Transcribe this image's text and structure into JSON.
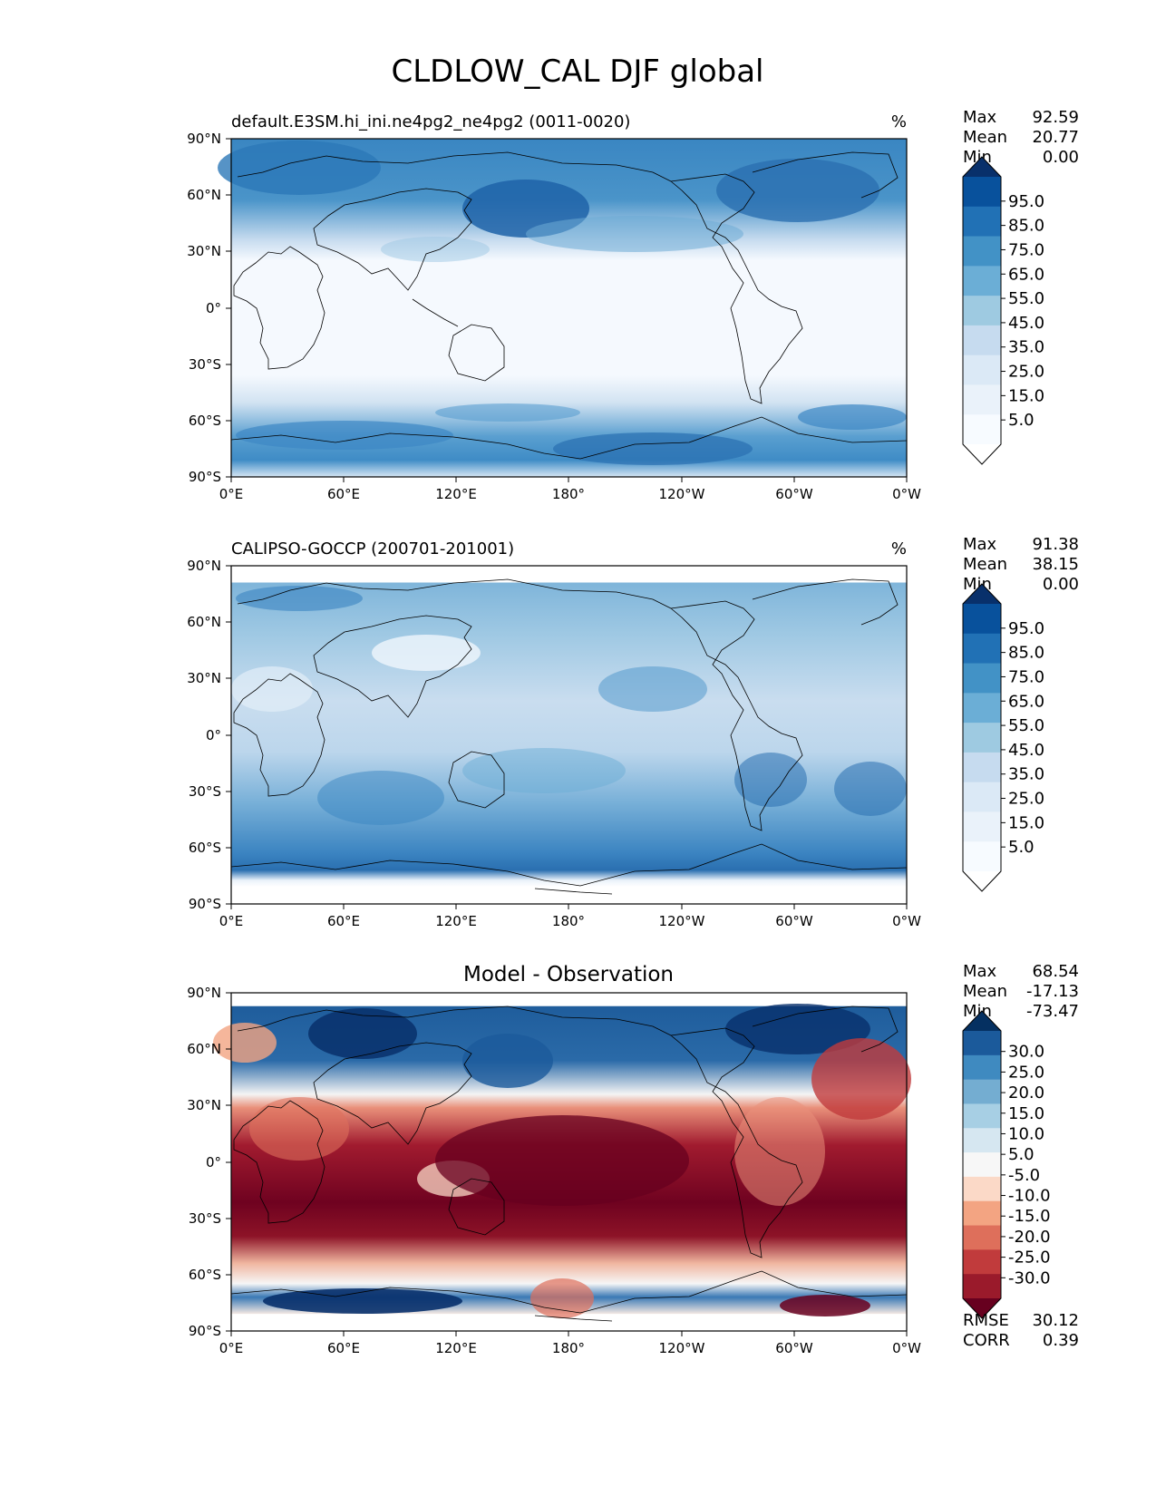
{
  "figure": {
    "title": "CLDLOW_CAL DJF global"
  },
  "axis_labels": {
    "lat": [
      "90°N",
      "60°N",
      "30°N",
      "0°",
      "30°S",
      "60°S",
      "90°S"
    ],
    "lon": [
      "0°E",
      "60°E",
      "120°E",
      "180°",
      "120°W",
      "60°W",
      "0°W"
    ]
  },
  "panels": [
    {
      "id": "model",
      "title_left": "default.E3SM.hi_ini.ne4pg2_ne4pg2 (0011-0020)",
      "title_center": "",
      "units": "%",
      "stats": [
        {
          "label": "Max",
          "value": "92.59"
        },
        {
          "label": "Mean",
          "value": "20.77"
        },
        {
          "label": "Min",
          "value": "0.00"
        }
      ],
      "colorbar": {
        "ticks": [
          "95.0",
          "85.0",
          "75.0",
          "65.0",
          "55.0",
          "45.0",
          "35.0",
          "25.0",
          "15.0",
          "5.0"
        ],
        "colors": [
          "#08306b",
          "#08519c",
          "#2171b5",
          "#4292c6",
          "#6baed6",
          "#9ecae1",
          "#c6dbef",
          "#dbe9f6",
          "#eaf2fa",
          "#f7fbff",
          "#ffffff"
        ]
      },
      "footer_stats": []
    },
    {
      "id": "obs",
      "title_left": "CALIPSO-GOCCP (200701-201001)",
      "title_center": "",
      "units": "%",
      "stats": [
        {
          "label": "Max",
          "value": "91.38"
        },
        {
          "label": "Mean",
          "value": "38.15"
        },
        {
          "label": "Min",
          "value": "0.00"
        }
      ],
      "colorbar": {
        "ticks": [
          "95.0",
          "85.0",
          "75.0",
          "65.0",
          "55.0",
          "45.0",
          "35.0",
          "25.0",
          "15.0",
          "5.0"
        ],
        "colors": [
          "#08306b",
          "#08519c",
          "#2171b5",
          "#4292c6",
          "#6baed6",
          "#9ecae1",
          "#c6dbef",
          "#dbe9f6",
          "#eaf2fa",
          "#f7fbff",
          "#ffffff"
        ]
      },
      "footer_stats": []
    },
    {
      "id": "diff",
      "title_left": "",
      "title_center": "Model - Observation",
      "units": "",
      "stats": [
        {
          "label": "Max",
          "value": "68.54"
        },
        {
          "label": "Mean",
          "value": "-17.13"
        },
        {
          "label": "Min",
          "value": "-73.47"
        }
      ],
      "colorbar": {
        "ticks": [
          "30.0",
          "25.0",
          "20.0",
          "15.0",
          "10.0",
          "5.0",
          "-5.0",
          "-10.0",
          "-15.0",
          "-20.0",
          "-25.0",
          "-30.0"
        ],
        "colors": [
          "#053061",
          "#1b5a9b",
          "#3f8ac0",
          "#74add1",
          "#a7cfe4",
          "#d6e7f1",
          "#f7f7f7",
          "#fbd9c7",
          "#f3a482",
          "#de6f5b",
          "#c13b3c",
          "#9a1a2b",
          "#67001f"
        ]
      },
      "footer_stats": [
        {
          "label": "RMSE",
          "value": "30.12"
        },
        {
          "label": "CORR",
          "value": "0.39"
        }
      ]
    }
  ]
}
